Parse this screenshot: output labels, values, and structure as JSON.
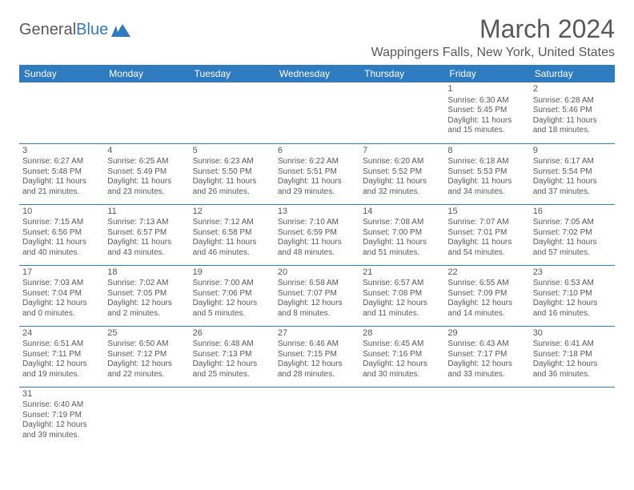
{
  "logo": {
    "text1": "General",
    "text2": "Blue"
  },
  "title": "March 2024",
  "location": "Wappingers Falls, New York, United States",
  "headers": [
    "Sunday",
    "Monday",
    "Tuesday",
    "Wednesday",
    "Thursday",
    "Friday",
    "Saturday"
  ],
  "colors": {
    "header_bg": "#2f7bbf",
    "header_text": "#ffffff",
    "text": "#58595b",
    "border": "#2f7bbf"
  },
  "weeks": [
    [
      null,
      null,
      null,
      null,
      null,
      {
        "n": "1",
        "sr": "Sunrise: 6:30 AM",
        "ss": "Sunset: 5:45 PM",
        "d1": "Daylight: 11 hours",
        "d2": "and 15 minutes."
      },
      {
        "n": "2",
        "sr": "Sunrise: 6:28 AM",
        "ss": "Sunset: 5:46 PM",
        "d1": "Daylight: 11 hours",
        "d2": "and 18 minutes."
      }
    ],
    [
      {
        "n": "3",
        "sr": "Sunrise: 6:27 AM",
        "ss": "Sunset: 5:48 PM",
        "d1": "Daylight: 11 hours",
        "d2": "and 21 minutes."
      },
      {
        "n": "4",
        "sr": "Sunrise: 6:25 AM",
        "ss": "Sunset: 5:49 PM",
        "d1": "Daylight: 11 hours",
        "d2": "and 23 minutes."
      },
      {
        "n": "5",
        "sr": "Sunrise: 6:23 AM",
        "ss": "Sunset: 5:50 PM",
        "d1": "Daylight: 11 hours",
        "d2": "and 26 minutes."
      },
      {
        "n": "6",
        "sr": "Sunrise: 6:22 AM",
        "ss": "Sunset: 5:51 PM",
        "d1": "Daylight: 11 hours",
        "d2": "and 29 minutes."
      },
      {
        "n": "7",
        "sr": "Sunrise: 6:20 AM",
        "ss": "Sunset: 5:52 PM",
        "d1": "Daylight: 11 hours",
        "d2": "and 32 minutes."
      },
      {
        "n": "8",
        "sr": "Sunrise: 6:18 AM",
        "ss": "Sunset: 5:53 PM",
        "d1": "Daylight: 11 hours",
        "d2": "and 34 minutes."
      },
      {
        "n": "9",
        "sr": "Sunrise: 6:17 AM",
        "ss": "Sunset: 5:54 PM",
        "d1": "Daylight: 11 hours",
        "d2": "and 37 minutes."
      }
    ],
    [
      {
        "n": "10",
        "sr": "Sunrise: 7:15 AM",
        "ss": "Sunset: 6:56 PM",
        "d1": "Daylight: 11 hours",
        "d2": "and 40 minutes."
      },
      {
        "n": "11",
        "sr": "Sunrise: 7:13 AM",
        "ss": "Sunset: 6:57 PM",
        "d1": "Daylight: 11 hours",
        "d2": "and 43 minutes."
      },
      {
        "n": "12",
        "sr": "Sunrise: 7:12 AM",
        "ss": "Sunset: 6:58 PM",
        "d1": "Daylight: 11 hours",
        "d2": "and 46 minutes."
      },
      {
        "n": "13",
        "sr": "Sunrise: 7:10 AM",
        "ss": "Sunset: 6:59 PM",
        "d1": "Daylight: 11 hours",
        "d2": "and 48 minutes."
      },
      {
        "n": "14",
        "sr": "Sunrise: 7:08 AM",
        "ss": "Sunset: 7:00 PM",
        "d1": "Daylight: 11 hours",
        "d2": "and 51 minutes."
      },
      {
        "n": "15",
        "sr": "Sunrise: 7:07 AM",
        "ss": "Sunset: 7:01 PM",
        "d1": "Daylight: 11 hours",
        "d2": "and 54 minutes."
      },
      {
        "n": "16",
        "sr": "Sunrise: 7:05 AM",
        "ss": "Sunset: 7:02 PM",
        "d1": "Daylight: 11 hours",
        "d2": "and 57 minutes."
      }
    ],
    [
      {
        "n": "17",
        "sr": "Sunrise: 7:03 AM",
        "ss": "Sunset: 7:04 PM",
        "d1": "Daylight: 12 hours",
        "d2": "and 0 minutes."
      },
      {
        "n": "18",
        "sr": "Sunrise: 7:02 AM",
        "ss": "Sunset: 7:05 PM",
        "d1": "Daylight: 12 hours",
        "d2": "and 2 minutes."
      },
      {
        "n": "19",
        "sr": "Sunrise: 7:00 AM",
        "ss": "Sunset: 7:06 PM",
        "d1": "Daylight: 12 hours",
        "d2": "and 5 minutes."
      },
      {
        "n": "20",
        "sr": "Sunrise: 6:58 AM",
        "ss": "Sunset: 7:07 PM",
        "d1": "Daylight: 12 hours",
        "d2": "and 8 minutes."
      },
      {
        "n": "21",
        "sr": "Sunrise: 6:57 AM",
        "ss": "Sunset: 7:08 PM",
        "d1": "Daylight: 12 hours",
        "d2": "and 11 minutes."
      },
      {
        "n": "22",
        "sr": "Sunrise: 6:55 AM",
        "ss": "Sunset: 7:09 PM",
        "d1": "Daylight: 12 hours",
        "d2": "and 14 minutes."
      },
      {
        "n": "23",
        "sr": "Sunrise: 6:53 AM",
        "ss": "Sunset: 7:10 PM",
        "d1": "Daylight: 12 hours",
        "d2": "and 16 minutes."
      }
    ],
    [
      {
        "n": "24",
        "sr": "Sunrise: 6:51 AM",
        "ss": "Sunset: 7:11 PM",
        "d1": "Daylight: 12 hours",
        "d2": "and 19 minutes."
      },
      {
        "n": "25",
        "sr": "Sunrise: 6:50 AM",
        "ss": "Sunset: 7:12 PM",
        "d1": "Daylight: 12 hours",
        "d2": "and 22 minutes."
      },
      {
        "n": "26",
        "sr": "Sunrise: 6:48 AM",
        "ss": "Sunset: 7:13 PM",
        "d1": "Daylight: 12 hours",
        "d2": "and 25 minutes."
      },
      {
        "n": "27",
        "sr": "Sunrise: 6:46 AM",
        "ss": "Sunset: 7:15 PM",
        "d1": "Daylight: 12 hours",
        "d2": "and 28 minutes."
      },
      {
        "n": "28",
        "sr": "Sunrise: 6:45 AM",
        "ss": "Sunset: 7:16 PM",
        "d1": "Daylight: 12 hours",
        "d2": "and 30 minutes."
      },
      {
        "n": "29",
        "sr": "Sunrise: 6:43 AM",
        "ss": "Sunset: 7:17 PM",
        "d1": "Daylight: 12 hours",
        "d2": "and 33 minutes."
      },
      {
        "n": "30",
        "sr": "Sunrise: 6:41 AM",
        "ss": "Sunset: 7:18 PM",
        "d1": "Daylight: 12 hours",
        "d2": "and 36 minutes."
      }
    ],
    [
      {
        "n": "31",
        "sr": "Sunrise: 6:40 AM",
        "ss": "Sunset: 7:19 PM",
        "d1": "Daylight: 12 hours",
        "d2": "and 39 minutes."
      },
      null,
      null,
      null,
      null,
      null,
      null
    ]
  ]
}
